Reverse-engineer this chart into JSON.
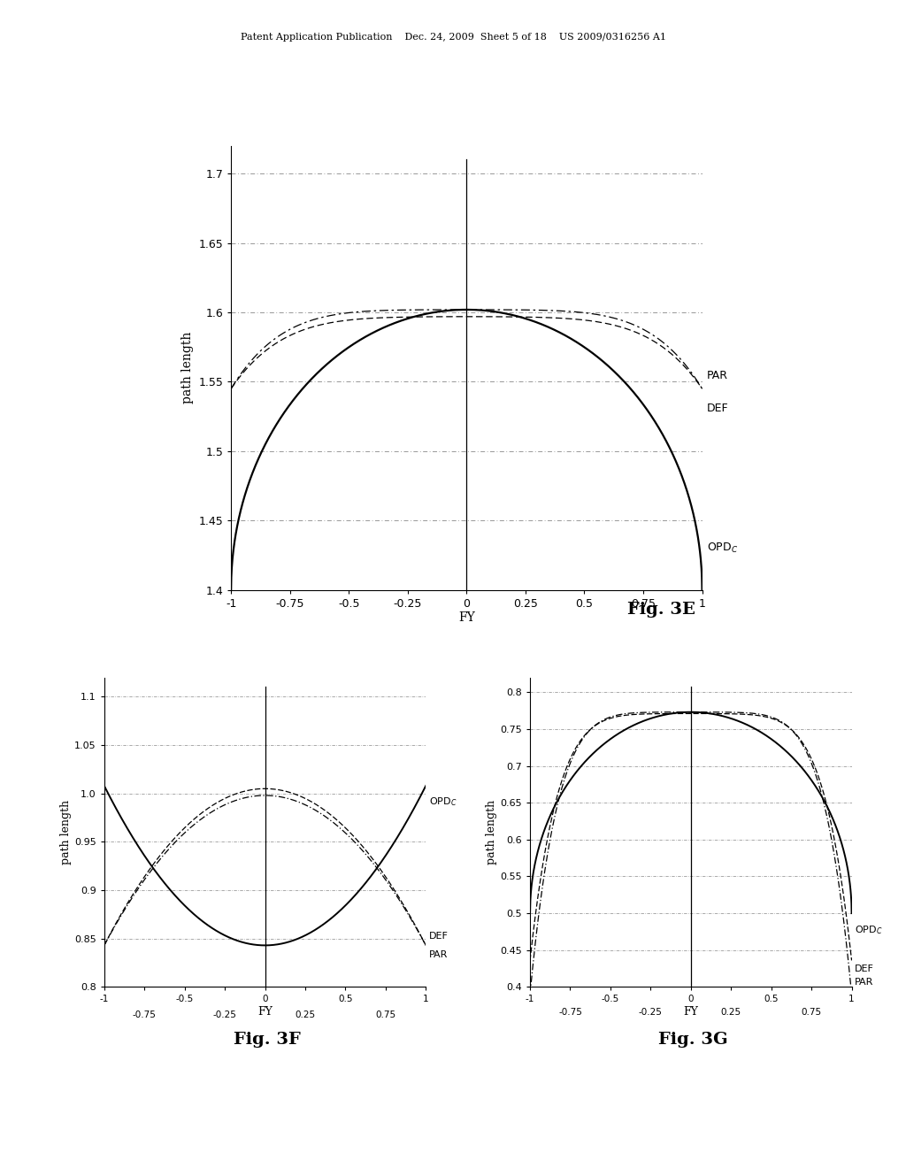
{
  "header_text": "Patent Application Publication    Dec. 24, 2009  Sheet 5 of 18    US 2009/0316256 A1",
  "background_color": "#ffffff",
  "fig3E": {
    "label": "Fig. 3E",
    "xlabel": "FY",
    "ylabel": "path length",
    "xlim": [
      -1,
      1
    ],
    "ylim": [
      1.4,
      1.72
    ],
    "yticks": [
      1.4,
      1.45,
      1.5,
      1.55,
      1.6,
      1.65,
      1.7
    ],
    "xticks": [
      -1,
      -0.75,
      -0.5,
      -0.25,
      0,
      0.25,
      0.5,
      0.75,
      1
    ],
    "xtick_labels": [
      "-1",
      "-0.75",
      "-0.5",
      "-0.25",
      "0",
      "0.25",
      "0.5",
      "0.75",
      "1"
    ]
  },
  "fig3F": {
    "label": "Fig. 3F",
    "xlabel": "FY",
    "ylabel": "path length",
    "xlim": [
      -1,
      1
    ],
    "ylim": [
      0.8,
      1.12
    ],
    "yticks": [
      0.8,
      0.85,
      0.9,
      0.95,
      1.0,
      1.05,
      1.1
    ],
    "xticks": [
      -1,
      -0.75,
      -0.5,
      -0.25,
      0,
      0.25,
      0.5,
      0.75,
      1
    ],
    "xtick_labels": [
      "-1",
      "-0.75",
      "-0.5",
      "-0.25",
      "0",
      "0.25",
      "0.5",
      "0.75",
      "1"
    ]
  },
  "fig3G": {
    "label": "Fig. 3G",
    "xlabel": "FY",
    "ylabel": "path length",
    "xlim": [
      -1,
      1
    ],
    "ylim": [
      0.4,
      0.82
    ],
    "yticks": [
      0.4,
      0.45,
      0.5,
      0.55,
      0.6,
      0.65,
      0.7,
      0.75,
      0.8
    ],
    "xticks": [
      -1,
      -0.75,
      -0.5,
      -0.25,
      0,
      0.25,
      0.5,
      0.75,
      1
    ],
    "xtick_labels": [
      "-1",
      "-0.75",
      "-0.5",
      "-0.25",
      "0",
      "0.25",
      "0.5",
      "0.75",
      "1"
    ]
  }
}
